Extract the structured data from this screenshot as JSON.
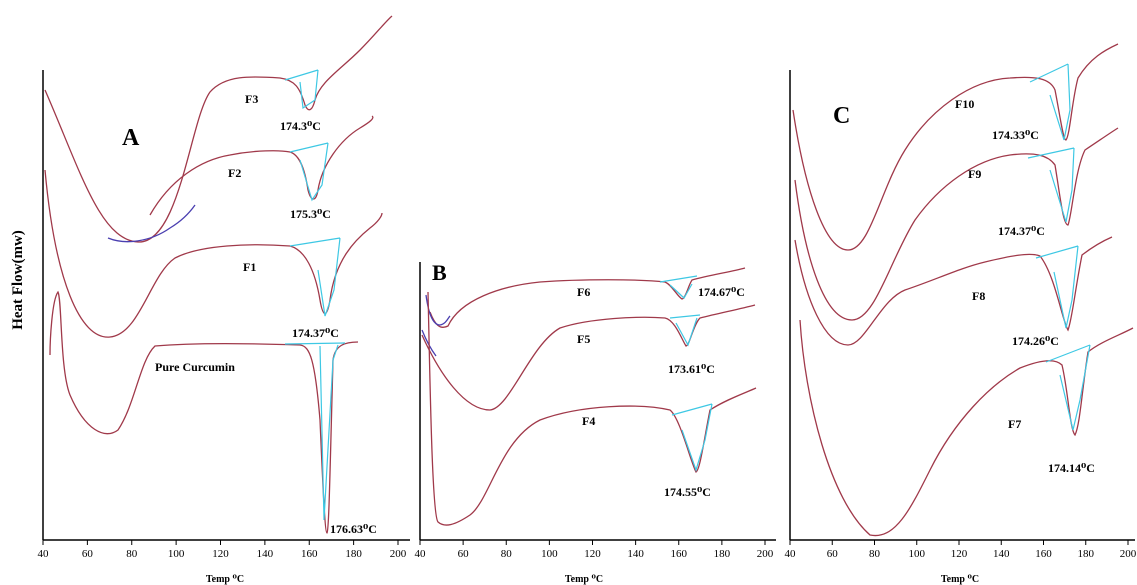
{
  "ylabel": "Heat Flow(mw)",
  "colors": {
    "curve": "#a0394a",
    "tangent": "#3ec8e4",
    "blue": "#4a3fb0",
    "axis": "#000000"
  },
  "chart_data": [
    {
      "type": "line",
      "panel_label": "A",
      "xlabel": "Temp ⁰C",
      "xlim": [
        40,
        200
      ],
      "x_ticks": [
        40,
        60,
        80,
        100,
        120,
        140,
        160,
        180,
        200
      ],
      "series": [
        {
          "name": "F3",
          "peak_label": "174.3⁰C"
        },
        {
          "name": "F2",
          "peak_label": "175.3⁰C"
        },
        {
          "name": "F1",
          "peak_label": "174.37⁰C"
        },
        {
          "name": "Pure Curcumin",
          "peak_label": "176.63⁰C"
        }
      ]
    },
    {
      "type": "line",
      "panel_label": "B",
      "xlabel": "Temp ⁰C",
      "xlim": [
        40,
        200
      ],
      "x_ticks": [
        40,
        60,
        80,
        100,
        120,
        140,
        160,
        180,
        200
      ],
      "series": [
        {
          "name": "F6",
          "peak_label": "174.67⁰C"
        },
        {
          "name": "F5",
          "peak_label": "173.61⁰C"
        },
        {
          "name": "F4",
          "peak_label": "174.55⁰C"
        }
      ]
    },
    {
      "type": "line",
      "panel_label": "C",
      "xlabel": "Temp ⁰C",
      "xlim": [
        40,
        200
      ],
      "x_ticks": [
        40,
        60,
        80,
        100,
        120,
        140,
        160,
        180,
        200
      ],
      "series": [
        {
          "name": "F10",
          "peak_label": "174.33⁰C"
        },
        {
          "name": "F9",
          "peak_label": "174.37⁰C"
        },
        {
          "name": "F8",
          "peak_label": "174.26⁰C"
        },
        {
          "name": "F7",
          "peak_label": "174.14⁰C"
        }
      ]
    }
  ]
}
